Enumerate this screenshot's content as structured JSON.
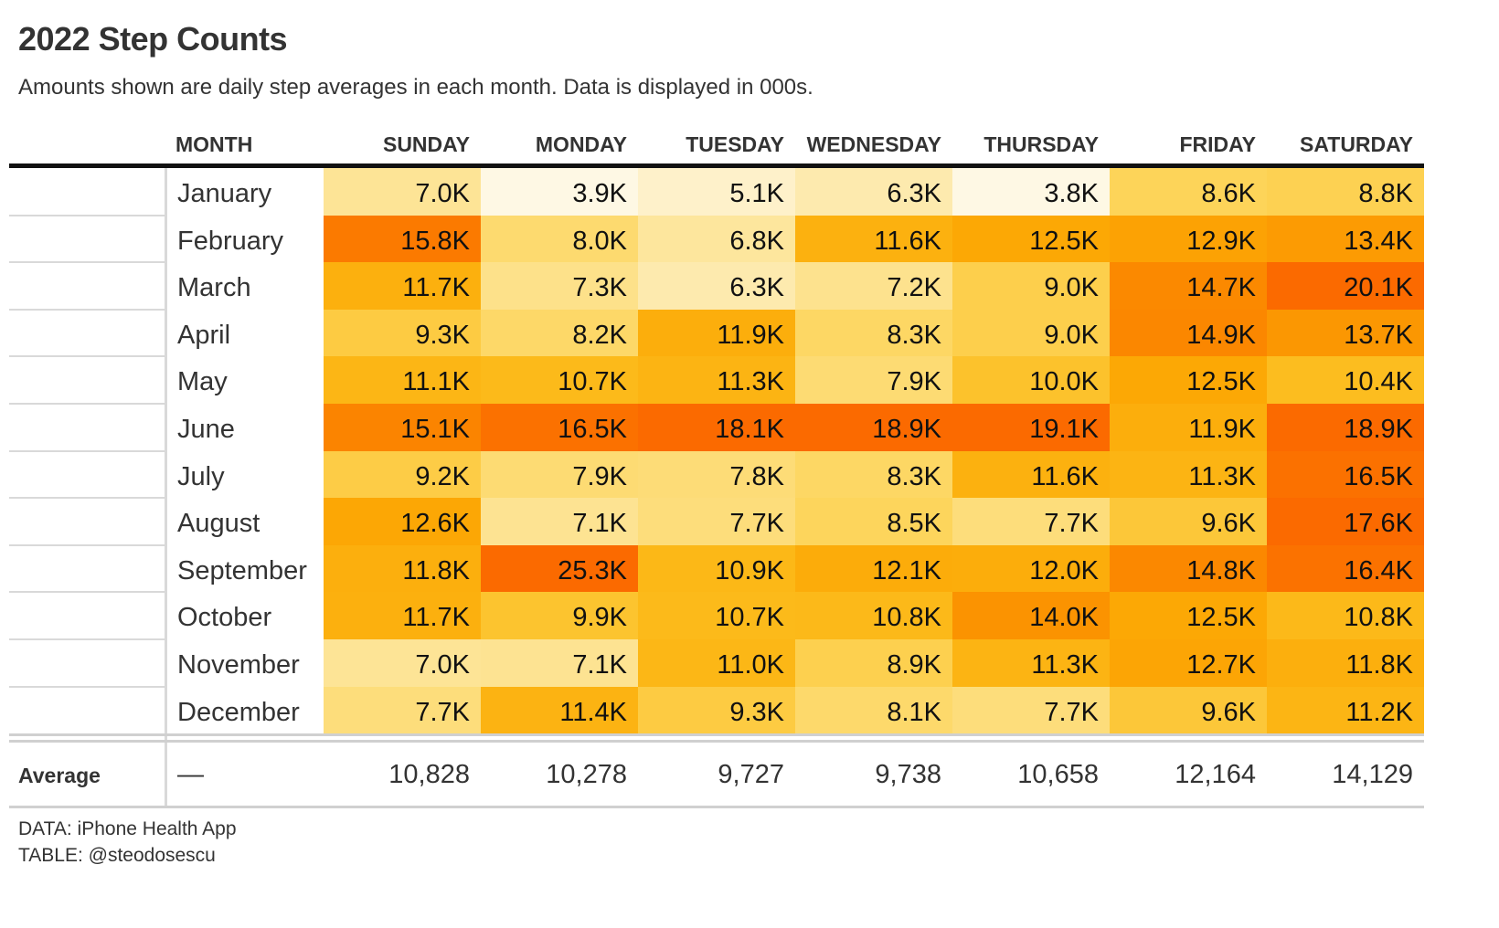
{
  "title": "2022 Step Counts",
  "subtitle": "Amounts shown are daily step averages in each month. Data is displayed in 000s.",
  "source_data": "DATA: iPhone Health App",
  "source_table": "TABLE: @steodosescu",
  "chart_data": {
    "type": "table",
    "title": "2022 Step Counts",
    "month_header": "MONTH",
    "columns": [
      "SUNDAY",
      "MONDAY",
      "TUESDAY",
      "WEDNESDAY",
      "THURSDAY",
      "FRIDAY",
      "SATURDAY"
    ],
    "rows": [
      {
        "month": "January",
        "values": [
          7.0,
          3.9,
          5.1,
          6.3,
          3.8,
          8.6,
          8.8
        ]
      },
      {
        "month": "February",
        "values": [
          15.8,
          8.0,
          6.8,
          11.6,
          12.5,
          12.9,
          13.4
        ]
      },
      {
        "month": "March",
        "values": [
          11.7,
          7.3,
          6.3,
          7.2,
          9.0,
          14.7,
          20.1
        ]
      },
      {
        "month": "April",
        "values": [
          9.3,
          8.2,
          11.9,
          8.3,
          9.0,
          14.9,
          13.7
        ]
      },
      {
        "month": "May",
        "values": [
          11.1,
          10.7,
          11.3,
          7.9,
          10.0,
          12.5,
          10.4
        ]
      },
      {
        "month": "June",
        "values": [
          15.1,
          16.5,
          18.1,
          18.9,
          19.1,
          11.9,
          18.9
        ]
      },
      {
        "month": "July",
        "values": [
          9.2,
          7.9,
          7.8,
          8.3,
          11.6,
          11.3,
          16.5
        ]
      },
      {
        "month": "August",
        "values": [
          12.6,
          7.1,
          7.7,
          8.5,
          7.7,
          9.6,
          17.6
        ]
      },
      {
        "month": "September",
        "values": [
          11.8,
          25.3,
          10.9,
          12.1,
          12.0,
          14.8,
          16.4
        ]
      },
      {
        "month": "October",
        "values": [
          11.7,
          9.9,
          10.7,
          10.8,
          14.0,
          12.5,
          10.8
        ]
      },
      {
        "month": "November",
        "values": [
          7.0,
          7.1,
          11.0,
          8.9,
          11.3,
          12.7,
          11.8
        ]
      },
      {
        "month": "December",
        "values": [
          7.7,
          11.4,
          9.3,
          8.1,
          7.7,
          9.6,
          11.2
        ]
      }
    ],
    "value_suffix": "K",
    "average_label": "Average",
    "average_month_value": "—",
    "averages": [
      "10,828",
      "10,278",
      "9,727",
      "9,738",
      "10,658",
      "12,164",
      "14,129"
    ],
    "color_scale": [
      "#fef8e4",
      "#fde9a9",
      "#fdd55c",
      "#fcbc1c",
      "#fca805",
      "#fb8c00",
      "#fb6a00"
    ]
  }
}
